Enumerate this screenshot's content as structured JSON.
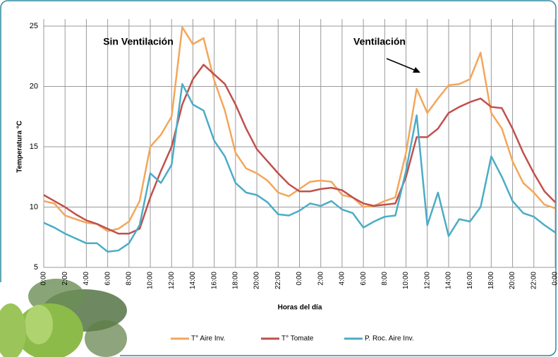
{
  "chart_data": {
    "type": "line",
    "y_label": "Temperatura °C",
    "x_label": "Horas del día",
    "annotations": [
      "Sin Ventilación",
      "Ventilación"
    ],
    "x": [
      0,
      1,
      2,
      3,
      4,
      5,
      6,
      7,
      8,
      9,
      10,
      11,
      12,
      13,
      14,
      15,
      16,
      17,
      18,
      19,
      20,
      21,
      22,
      23,
      24,
      25,
      26,
      27,
      28,
      29,
      30,
      31,
      32,
      33,
      34,
      35,
      36,
      37,
      38,
      39,
      40,
      41,
      42,
      43,
      44,
      45,
      46,
      47,
      48
    ],
    "series": [
      {
        "name": "T° Aire Inv.",
        "color": "#f4a65a",
        "values": [
          10.5,
          10.3,
          9.3,
          9.0,
          8.7,
          8.6,
          8.0,
          8.2,
          8.8,
          10.5,
          15.0,
          16.0,
          17.5,
          24.9,
          23.5,
          24.0,
          20.5,
          18.0,
          14.5,
          13.2,
          12.8,
          12.2,
          11.2,
          10.9,
          11.5,
          12.1,
          12.2,
          12.1,
          11.0,
          10.8,
          10.0,
          10.1,
          10.5,
          10.8,
          14.5,
          19.8,
          17.8,
          19.0,
          20.1,
          20.2,
          20.6,
          22.8,
          17.8,
          16.5,
          13.8,
          12.0,
          11.2,
          10.2,
          9.9
        ]
      },
      {
        "name": "T° Tomate",
        "color": "#c0504d",
        "values": [
          11.0,
          10.5,
          10.0,
          9.4,
          8.9,
          8.6,
          8.2,
          7.8,
          7.8,
          8.2,
          10.8,
          13.0,
          15.0,
          18.5,
          20.6,
          21.8,
          21.0,
          20.2,
          18.5,
          16.5,
          14.8,
          13.8,
          12.8,
          11.9,
          11.3,
          11.3,
          11.5,
          11.6,
          11.4,
          10.8,
          10.3,
          10.1,
          10.2,
          10.3,
          12.5,
          15.8,
          15.8,
          16.5,
          17.8,
          18.3,
          18.7,
          19.0,
          18.3,
          18.2,
          16.5,
          14.5,
          12.8,
          11.3,
          10.4
        ]
      },
      {
        "name": "P. Roc. Aire Inv.",
        "color": "#4bacc6",
        "values": [
          8.7,
          8.3,
          7.8,
          7.4,
          7.0,
          7.0,
          6.3,
          6.4,
          7.0,
          8.5,
          12.8,
          12.0,
          13.5,
          20.2,
          18.5,
          18.0,
          15.5,
          14.2,
          12.0,
          11.2,
          11.0,
          10.4,
          9.4,
          9.3,
          9.7,
          10.3,
          10.1,
          10.5,
          9.8,
          9.5,
          8.3,
          8.8,
          9.2,
          9.3,
          13.0,
          17.6,
          8.5,
          11.2,
          7.6,
          9.0,
          8.8,
          10.0,
          14.2,
          12.5,
          10.5,
          9.5,
          9.2,
          8.5,
          7.9
        ]
      }
    ],
    "xlim": [
      0,
      48
    ],
    "xticks": [
      {
        "value": 0,
        "label": "0:00"
      },
      {
        "value": 2,
        "label": "2:00"
      },
      {
        "value": 4,
        "label": "4:00"
      },
      {
        "value": 6,
        "label": "6:00"
      },
      {
        "value": 8,
        "label": "8:00"
      },
      {
        "value": 10,
        "label": "10:00"
      },
      {
        "value": 12,
        "label": "12:00"
      },
      {
        "value": 14,
        "label": "14:00"
      },
      {
        "value": 16,
        "label": "16:00"
      },
      {
        "value": 18,
        "label": "18:00"
      },
      {
        "value": 20,
        "label": "20:00"
      },
      {
        "value": 22,
        "label": "22:00"
      },
      {
        "value": 24,
        "label": "0:00"
      },
      {
        "value": 26,
        "label": "2:00"
      },
      {
        "value": 28,
        "label": "4:00"
      },
      {
        "value": 30,
        "label": "6:00"
      },
      {
        "value": 32,
        "label": "8:00"
      },
      {
        "value": 34,
        "label": "10:00"
      },
      {
        "value": 36,
        "label": "12:00"
      },
      {
        "value": 38,
        "label": "14:00"
      },
      {
        "value": 40,
        "label": "16:00"
      },
      {
        "value": 42,
        "label": "18:00"
      },
      {
        "value": 44,
        "label": "20:00"
      },
      {
        "value": 46,
        "label": "22:00"
      },
      {
        "value": 48,
        "label": "0:00"
      }
    ],
    "ylim": [
      5,
      25
    ],
    "yticks": [
      5,
      10,
      15,
      20,
      25
    ],
    "grid": true,
    "legend": "bottom"
  }
}
